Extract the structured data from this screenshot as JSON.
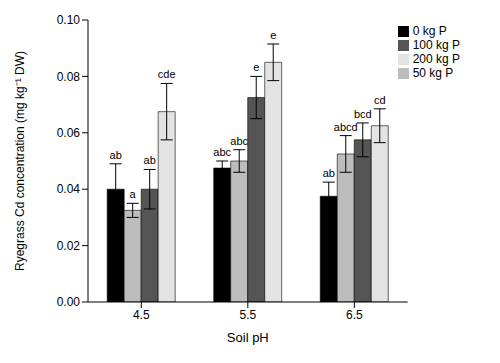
{
  "chart_data": {
    "type": "bar",
    "x_label": "Soil pH",
    "y_label": "Ryegrass Cd concentration (mg kg⁻¹ DW)",
    "categories": [
      "4.5",
      "5.5",
      "6.5"
    ],
    "series": [
      {
        "name": "0 kg P",
        "color": "#000000",
        "values": [
          0.04,
          0.0475,
          0.0375
        ],
        "errors": [
          0.009,
          0.0025,
          0.005
        ],
        "annotations": [
          "ab",
          "abc",
          "ab"
        ]
      },
      {
        "name": "50 kg P",
        "color": "#bdbdbd",
        "values": [
          0.0325,
          0.05,
          0.0525
        ],
        "errors": [
          0.0025,
          0.004,
          0.0065
        ],
        "annotations": [
          "a",
          "abc",
          "abcd"
        ]
      },
      {
        "name": "100 kg P",
        "color": "#555555",
        "values": [
          0.04,
          0.0725,
          0.0575
        ],
        "errors": [
          0.007,
          0.0075,
          0.006
        ],
        "annotations": [
          "ab",
          "e",
          "bcd"
        ]
      },
      {
        "name": "200 kg P",
        "color": "#e3e3e3",
        "values": [
          0.0675,
          0.085,
          0.0625
        ],
        "errors": [
          0.01,
          0.0065,
          0.006
        ],
        "annotations": [
          "cde",
          "e",
          "cd"
        ]
      }
    ],
    "ylim": [
      0,
      0.1
    ],
    "yticks": [
      {
        "value": 0,
        "label": "0.00"
      },
      {
        "value": 0.02,
        "label": "0.02"
      },
      {
        "value": 0.04,
        "label": "0.04"
      },
      {
        "value": 0.06,
        "label": "0.06"
      },
      {
        "value": 0.08,
        "label": "0.08"
      },
      {
        "value": 0.1,
        "label": "0.10"
      }
    ],
    "grid": false,
    "legend": "upper right"
  }
}
